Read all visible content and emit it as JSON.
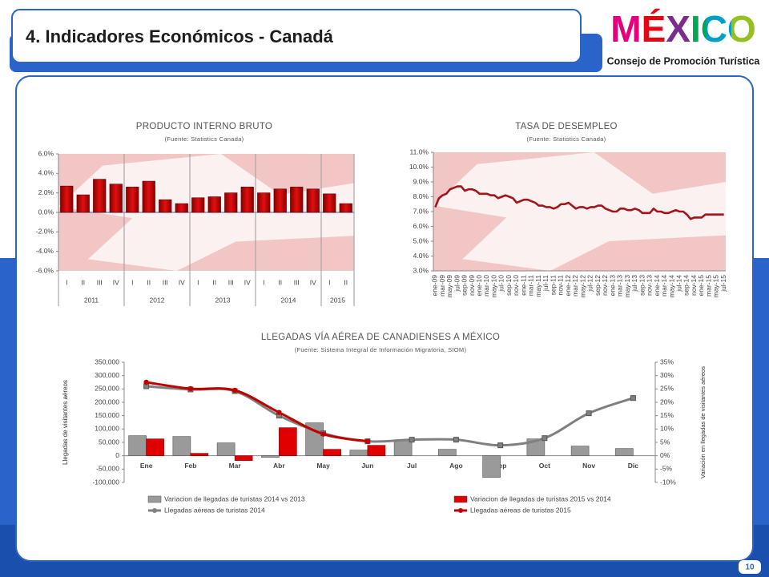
{
  "header": {
    "title": "4. Indicadores Económicos - Canadá",
    "logo": "MÉXICO",
    "logo_subtitle": "Consejo de Promoción Turística",
    "page_number": "10"
  },
  "chart_data": [
    {
      "type": "bar",
      "title": "PRODUCTO INTERNO BRUTO",
      "subtitle": "(Fuente: Statistics Canada)",
      "categories": [
        "I",
        "II",
        "III",
        "IV",
        "I",
        "II",
        "III",
        "IV",
        "I",
        "II",
        "III",
        "IV",
        "I",
        "II",
        "III",
        "IV",
        "I",
        "II"
      ],
      "groups": [
        {
          "name": "2011",
          "size": 4
        },
        {
          "name": "2012",
          "size": 4
        },
        {
          "name": "2013",
          "size": 4
        },
        {
          "name": "2014",
          "size": 4
        },
        {
          "name": "2015",
          "size": 2
        }
      ],
      "values": [
        2.7,
        1.8,
        3.4,
        2.9,
        2.6,
        3.2,
        1.3,
        0.9,
        1.5,
        1.6,
        2.0,
        2.6,
        2.0,
        2.4,
        2.6,
        2.4,
        1.9,
        0.9
      ],
      "color": "#c00000",
      "ylim": [
        -6,
        6
      ],
      "yticks": [
        {
          "value": -6,
          "label": "-6.0%"
        },
        {
          "value": -4,
          "label": "-4.0%"
        },
        {
          "value": -2,
          "label": "-2.0%"
        },
        {
          "value": 0,
          "label": "0.0%"
        },
        {
          "value": 2,
          "label": "2.0%"
        },
        {
          "value": 4,
          "label": "4.0%"
        },
        {
          "value": 6,
          "label": "6.0%"
        }
      ]
    },
    {
      "type": "line",
      "title": "TASA DE DESEMPLEO",
      "subtitle": "(Fuente: Statistics Canada)",
      "categories": [
        "ene-09",
        null,
        "mar-09",
        null,
        "may-09",
        null,
        "jul-09",
        null,
        "sep-09",
        null,
        "nov-09",
        null,
        "ene-10",
        null,
        "mar-10",
        null,
        "may-10",
        null,
        "jul-10",
        null,
        "sep-10",
        null,
        "nov-10",
        null,
        "ene-11",
        null,
        "mar-11",
        null,
        "may-11",
        null,
        "jul-11",
        null,
        "sep-11",
        null,
        "nov-11",
        null,
        "ene-12",
        null,
        "mar-12",
        null,
        "may-12",
        null,
        "jul-12",
        null,
        "sep-12",
        null,
        "nov-12",
        null,
        "ene-13",
        null,
        "mar-13",
        null,
        "may-13",
        null,
        "jul-13",
        null,
        "sep-13",
        null,
        "nov-13",
        null,
        "ene-14",
        null,
        "mar-14",
        null,
        "may-14",
        null,
        "jul-14",
        null,
        "sep-14",
        null,
        "nov-14",
        null,
        "ene-15",
        null,
        "mar-15",
        null,
        "may-15",
        null,
        "jul-15"
      ],
      "values": [
        7.3,
        7.9,
        8.1,
        8.2,
        8.5,
        8.6,
        8.7,
        8.7,
        8.4,
        8.5,
        8.5,
        8.4,
        8.2,
        8.2,
        8.2,
        8.1,
        8.1,
        7.9,
        8.0,
        8.1,
        8.0,
        7.9,
        7.6,
        7.7,
        7.8,
        7.8,
        7.7,
        7.6,
        7.4,
        7.4,
        7.3,
        7.3,
        7.2,
        7.3,
        7.5,
        7.5,
        7.6,
        7.4,
        7.2,
        7.3,
        7.3,
        7.2,
        7.3,
        7.3,
        7.4,
        7.4,
        7.2,
        7.1,
        7.0,
        7.0,
        7.2,
        7.2,
        7.1,
        7.1,
        7.2,
        7.1,
        6.9,
        6.9,
        6.9,
        7.2,
        7.0,
        7.0,
        6.9,
        6.9,
        7.0,
        7.1,
        7.0,
        7.0,
        6.8,
        6.5,
        6.6,
        6.6,
        6.6,
        6.8,
        6.8,
        6.8,
        6.8,
        6.8,
        6.8
      ],
      "color": "#a3151b",
      "ylim": [
        3,
        11
      ],
      "yticks": [
        {
          "value": 3,
          "label": "3.0%"
        },
        {
          "value": 4,
          "label": "4.0%"
        },
        {
          "value": 5,
          "label": "5.0%"
        },
        {
          "value": 6,
          "label": "6.0%"
        },
        {
          "value": 7,
          "label": "7.0%"
        },
        {
          "value": 8,
          "label": "8.0%"
        },
        {
          "value": 9,
          "label": "9.0%"
        },
        {
          "value": 10,
          "label": "10.0%"
        },
        {
          "value": 11,
          "label": "11.0%"
        }
      ]
    },
    {
      "type": "combo",
      "title": "LLEGADAS VÍA AÉREA DE CANADIENSES A MÉXICO",
      "subtitle": "(Fuente: Sistema Integral de Información Migratoria, SIOM)",
      "y_label": "Llegadas de visitantes aéreos",
      "y2_label": "Variación en llegadas de visitantes aéreos",
      "categories": [
        "Ene",
        "Feb",
        "Mar",
        "Abr",
        "May",
        "Jun",
        "Jul",
        "Ago",
        "Sep",
        "Oct",
        "Nov",
        "Dic"
      ],
      "series": [
        {
          "name": "Variacion de llegadas de turistas  2014 vs 2013",
          "type": "bar",
          "axis": "y2",
          "color": "#9a9a9a",
          "values": [
            7.5,
            7.2,
            4.8,
            -0.6,
            12.3,
            2.1,
            5.7,
            2.4,
            -8.1,
            6.3,
            3.6,
            2.7
          ]
        },
        {
          "name": "Variacion de llegadas de turistas  2015 vs 2014",
          "type": "bar",
          "axis": "y2",
          "color": "#e00000",
          "values": [
            6.3,
            0.9,
            -1.8,
            10.5,
            2.4,
            3.9,
            null,
            null,
            null,
            null,
            null,
            null
          ]
        },
        {
          "name": "Llegadas aéreas de turistas 2014",
          "type": "line",
          "axis": "y",
          "color": "#808080",
          "values": [
            260000,
            248000,
            242000,
            150000,
            84000,
            54000,
            60000,
            60000,
            39000,
            66000,
            159000,
            216000
          ]
        },
        {
          "name": "Llegadas aéreas de turistas 2015",
          "type": "line",
          "axis": "y",
          "color": "#c00000",
          "values": [
            275000,
            251000,
            245000,
            162000,
            81000,
            54000,
            null,
            null,
            null,
            null,
            null,
            null
          ]
        }
      ],
      "ylim": [
        -100000,
        350000
      ],
      "yticks": [
        {
          "value": -100000,
          "label": "-100,000"
        },
        {
          "value": -50000,
          "label": "-50,000"
        },
        0,
        {
          "value": 50000,
          "label": "50,000"
        },
        {
          "value": 100000,
          "label": "100,000"
        },
        {
          "value": 150000,
          "label": "150,000"
        },
        {
          "value": 200000,
          "label": "200,000"
        },
        {
          "value": 250000,
          "label": "250,000"
        },
        {
          "value": 300000,
          "label": "300,000"
        },
        {
          "value": 350000,
          "label": "350,000"
        }
      ],
      "y2lim": [
        -10,
        35
      ],
      "y2ticks": [
        {
          "value": -10,
          "label": "-10%"
        },
        {
          "value": -5,
          "label": "-5%"
        },
        {
          "value": 0,
          "label": "0%"
        },
        {
          "value": 5,
          "label": "5%"
        },
        {
          "value": 10,
          "label": "10%"
        },
        {
          "value": 15,
          "label": "15%"
        },
        {
          "value": 20,
          "label": "20%"
        },
        {
          "value": 25,
          "label": "25%"
        },
        {
          "value": 30,
          "label": "30%"
        },
        {
          "value": 35,
          "label": "35%"
        }
      ],
      "legend": "bottom"
    }
  ]
}
